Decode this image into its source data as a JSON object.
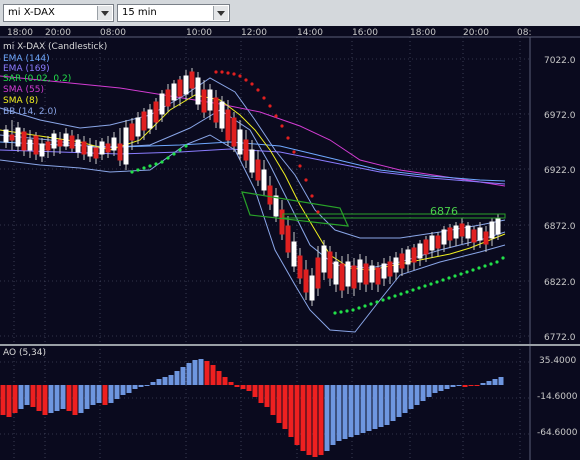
{
  "toolbar": {
    "symbol": "mi X-DAX",
    "period": "15 min"
  },
  "time_axis": [
    "18:00",
    "20:00",
    "08:00",
    "10:00",
    "12:00",
    "14:00",
    "16:00",
    "18:00",
    "20:00",
    "08:"
  ],
  "main_chart": {
    "title": "mi X-DAX (Candlestick)",
    "price_labels": [
      "7022.0",
      "6972.0",
      "6922.0",
      "6872.0",
      "6822.0",
      "6772.0"
    ],
    "legend": [
      {
        "text": "EMA (144)",
        "color": "#6fa8ff"
      },
      {
        "text": "EMA (169)",
        "color": "#8a7cff"
      },
      {
        "text": "SAR (0.02, 0.2)",
        "color": "#22e04a"
      },
      {
        "text": "SMA (55)",
        "color": "#d23cd2"
      },
      {
        "text": "SMA (8)",
        "color": "#f0f020"
      },
      {
        "text": "BB (14, 2.0)",
        "color": "#8aa6e8"
      }
    ],
    "marker_label": "6876",
    "colors": {
      "up": "#ffffff",
      "down": "#e02020",
      "grid": "#5a5f78",
      "axis_text": "#c8c8c8"
    }
  },
  "ao_panel": {
    "title": "AO (5,34)",
    "labels": [
      "35.4000",
      "-14.6000",
      "-64.6000"
    ],
    "colors": {
      "up": "#6e96e0",
      "down": "#ee2020"
    }
  }
}
